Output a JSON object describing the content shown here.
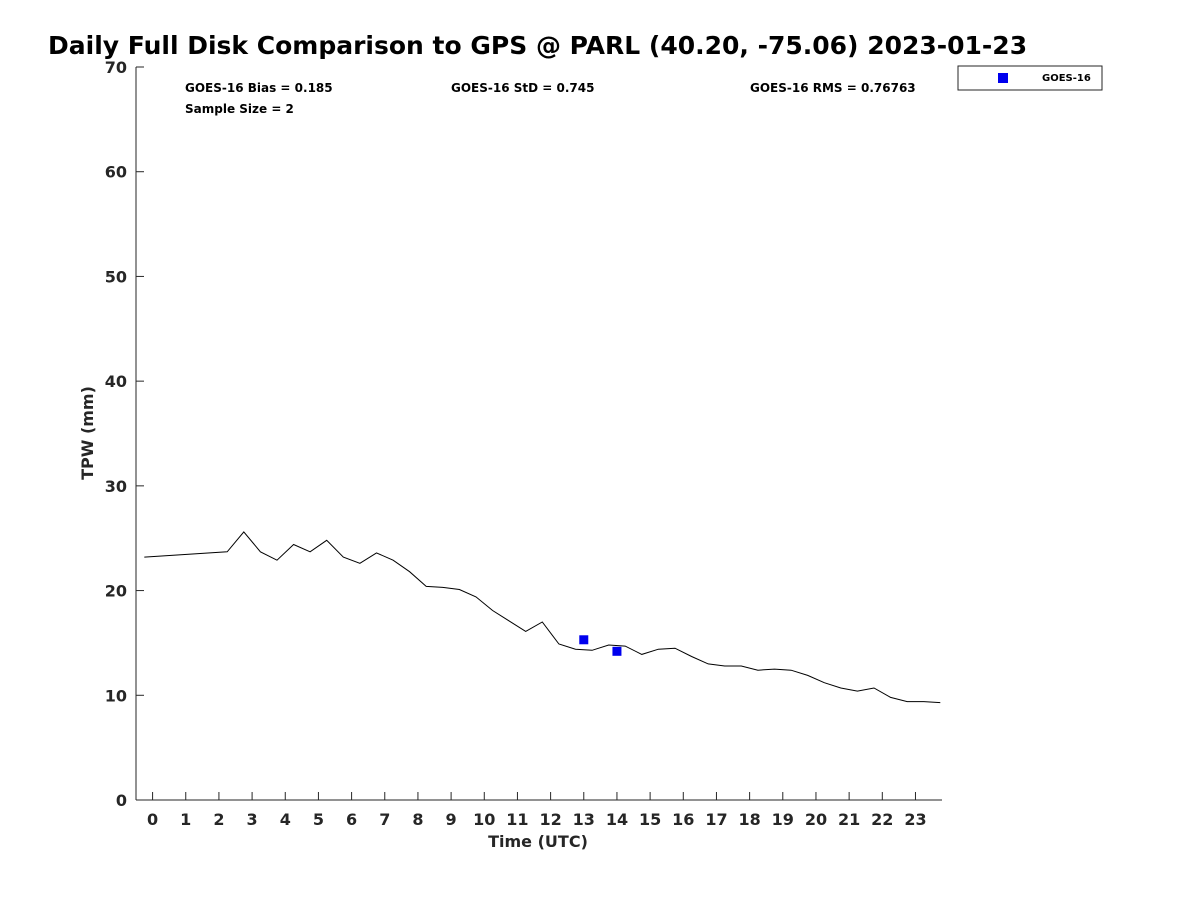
{
  "chart_data": {
    "type": "line",
    "title": "Daily Full Disk Comparison to GPS @ PARL (40.20, -75.06) 2023-01-23",
    "xlabel": "Time (UTC)",
    "ylabel": "TPW (mm)",
    "xlim": [
      -0.5,
      23.8
    ],
    "ylim": [
      0,
      70
    ],
    "x_ticks": [
      0,
      1,
      2,
      3,
      4,
      5,
      6,
      7,
      8,
      9,
      10,
      11,
      12,
      13,
      14,
      15,
      16,
      17,
      18,
      19,
      20,
      21,
      22,
      23
    ],
    "y_ticks": [
      0,
      10,
      20,
      30,
      40,
      50,
      60,
      70
    ],
    "grid": false,
    "legend_position": "top-right",
    "stats": {
      "bias": "GOES-16 Bias = 0.185",
      "std": "GOES-16 StD = 0.745",
      "rms": "GOES-16 RMS = 0.76763",
      "sample_size": "Sample Size = 2"
    },
    "series": [
      {
        "name": "",
        "kind": "line",
        "color": "#000000",
        "x": [
          -0.25,
          2.25,
          2.75,
          3.25,
          3.75,
          4.25,
          4.75,
          5.25,
          5.75,
          6.25,
          6.75,
          7.25,
          7.75,
          8.25,
          8.75,
          9.25,
          9.75,
          10.25,
          10.75,
          11.25,
          11.75,
          12.25,
          12.75,
          13.25,
          13.75,
          14.25,
          14.75,
          15.25,
          15.75,
          16.25,
          16.75,
          17.25,
          17.75,
          18.25,
          18.75,
          19.25,
          19.75,
          20.25,
          20.75,
          21.25,
          21.75,
          22.25,
          22.75,
          23.25,
          23.75
        ],
        "y": [
          23.2,
          23.7,
          25.6,
          23.7,
          22.9,
          24.4,
          23.7,
          24.8,
          23.2,
          22.6,
          23.6,
          22.9,
          21.8,
          20.4,
          20.3,
          20.1,
          19.4,
          18.1,
          17.1,
          16.1,
          17.0,
          14.9,
          14.4,
          14.3,
          14.8,
          14.7,
          13.9,
          14.4,
          14.5,
          13.7,
          13.0,
          12.8,
          12.8,
          12.4,
          12.5,
          12.4,
          11.9,
          11.2,
          10.7,
          10.4,
          10.7,
          9.8,
          9.4,
          9.4,
          9.3
        ]
      },
      {
        "name": "GOES-16",
        "kind": "scatter",
        "color": "#0000ee",
        "x": [
          13,
          14
        ],
        "y": [
          15.3,
          14.2
        ]
      }
    ]
  }
}
